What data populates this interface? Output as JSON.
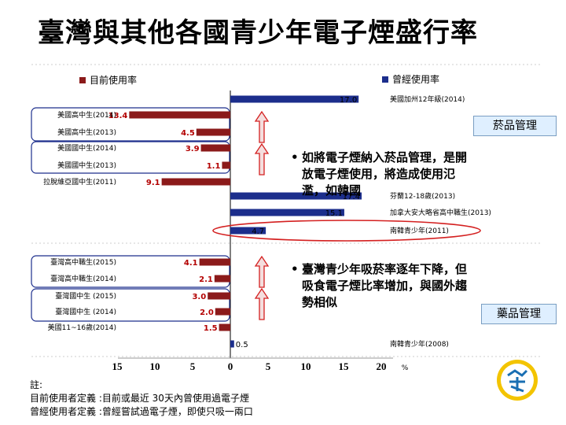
{
  "page": {
    "title": "臺灣與其他各國青少年電子煙盛行率",
    "bullets": [
      "如將電子煙納入菸品管理，是開放電子煙使用，將造成使用氾濫，如韓國",
      "臺灣青少年吸菸率逐年下降，但吸食電子煙比率增加，與國外趨勢相似"
    ],
    "box_labels": [
      "菸品管理",
      "藥品管理"
    ],
    "note": {
      "heading": "註:",
      "lines": [
        "目前使用者定義 :目前或最近 30天內曾使用過電子煙",
        "曾經使用者定義 :曾經嘗試過電子煙，即使只吸一兩口"
      ]
    },
    "colors": {
      "current": "#8b1a1a",
      "ever": "#1c2e8c",
      "circle": "#d42020",
      "arrow": "#d42020",
      "box_bg": "#dfefff"
    }
  },
  "chart_data": {
    "type": "bar",
    "orientation": "horizontal-butterfly",
    "legend": {
      "current": "目前使用率",
      "ever": "曾經使用率"
    },
    "x_ticks": [
      "15",
      "10",
      "5",
      "0",
      "5",
      "10",
      "15",
      "20"
    ],
    "x_unit": "%",
    "xlim_left": [
      0,
      15
    ],
    "xlim_right": [
      0,
      20
    ],
    "series": [
      {
        "name": "目前使用率",
        "side": "left",
        "rows": [
          {
            "label": "美國高中生(2014)",
            "value": 13.4,
            "value_label": "13.4"
          },
          {
            "label": "美國高中生(2013)",
            "value": 4.5,
            "value_label": "4.5"
          },
          {
            "label": "美國國中生(2014)",
            "value": 3.9,
            "value_label": "3.9"
          },
          {
            "label": "美國國中生(2013)",
            "value": 1.1,
            "value_label": "1.1"
          },
          {
            "label": "拉脫維亞國中生(2011)",
            "value": 9.1,
            "value_label": "9.1"
          },
          {
            "label": "臺灣高中職生(2015)",
            "value": 4.1,
            "value_label": "4.1"
          },
          {
            "label": "臺灣高中職生(2014)",
            "value": 2.1,
            "value_label": "2.1"
          },
          {
            "label": "臺灣國中生 (2015)",
            "value": 3.0,
            "value_label": "3.0"
          },
          {
            "label": "臺灣國中生 (2014)",
            "value": 2.0,
            "value_label": "2.0"
          },
          {
            "label": "美國11~16歲(2014)",
            "value": 1.5,
            "value_label": "1.5"
          }
        ]
      },
      {
        "name": "曾經使用率",
        "side": "right",
        "rows": [
          {
            "label": "美國加州12年級(2014)",
            "value": 17.0,
            "value_label": "17.0"
          },
          {
            "label": "芬蘭12-18歲(2013)",
            "value": 17.4,
            "value_label": "17.4"
          },
          {
            "label": "加拿大安大略省高中職生(2013)",
            "value": 15.1,
            "value_label": "15.1"
          },
          {
            "label": "南韓青少年(2011)",
            "value": 4.7,
            "value_label": "4.7"
          },
          {
            "label": "南韓青少年(2008)",
            "value": 0.5,
            "value_label": "0.5"
          }
        ]
      }
    ]
  }
}
